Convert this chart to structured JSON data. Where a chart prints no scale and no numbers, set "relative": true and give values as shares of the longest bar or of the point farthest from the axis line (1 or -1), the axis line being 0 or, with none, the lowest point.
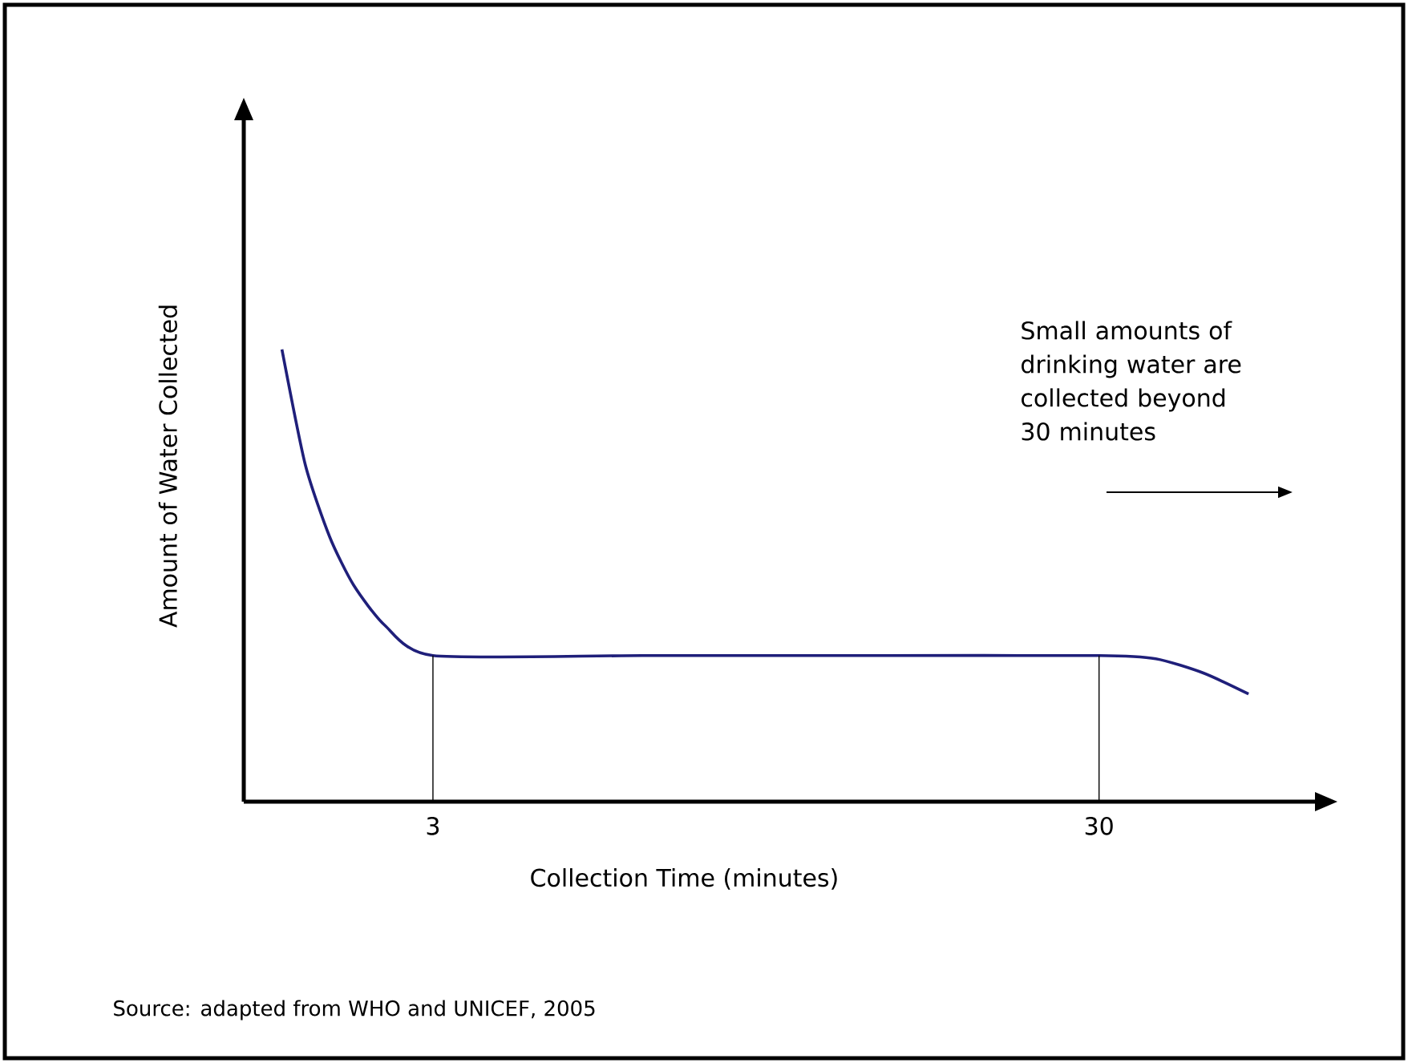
{
  "chart_data": {
    "type": "line",
    "relative": true,
    "xlabel": "Collection Time (minutes)",
    "ylabel": "Amount of Water Collected",
    "log": "x",
    "xlim": [
      1.56,
      64
    ],
    "xticks": [
      3,
      30
    ],
    "marker": "none",
    "line_style": "solid",
    "grid": false,
    "series": [
      {
        "color": "#1f1f7a",
        "x": [
          1.78,
          1.93,
          2.1,
          2.28,
          2.54,
          3,
          6.18,
          14.2,
          30,
          36.5,
          43.1,
          50.3
        ],
        "values": [
          1,
          0.745,
          0.585,
          0.479,
          0.39,
          0.323,
          0.323,
          0.323,
          0.323,
          0.316,
          0.284,
          0.238
        ]
      }
    ],
    "ref_lines": [
      {
        "axis": "x",
        "value": 3,
        "color": "#000000"
      },
      {
        "axis": "x",
        "value": 30,
        "color": "#000000"
      }
    ],
    "annotations": [
      "Small amounts of drinking water are collected beyond 30 minutes",
      "Source: adapted from WHO and UNICEF, 2005"
    ]
  }
}
